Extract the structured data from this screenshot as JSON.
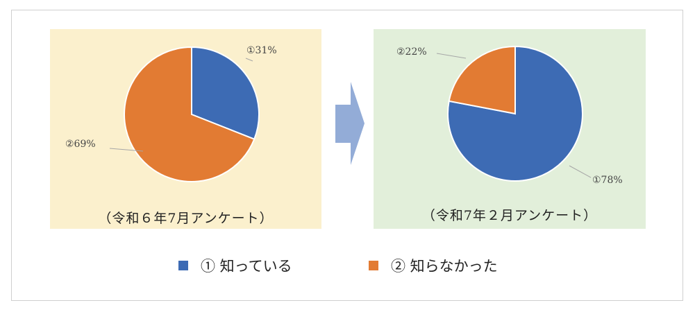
{
  "chart_data": [
    {
      "type": "pie",
      "caption": "（令和６年7月アンケート）",
      "categories": [
        "①",
        "②"
      ],
      "values": [
        31,
        69
      ],
      "slice_labels": [
        "①31%",
        "②69%"
      ],
      "colors": [
        "#3d6bb4",
        "#e27b33"
      ],
      "panel_bg": "#fbf0cd"
    },
    {
      "type": "pie",
      "caption": "（令和7年２月アンケート）",
      "categories": [
        "①",
        "②"
      ],
      "values": [
        78,
        22
      ],
      "slice_labels": [
        "①78%",
        "②22%"
      ],
      "colors": [
        "#3d6bb4",
        "#e27b33"
      ],
      "panel_bg": "#e2efda"
    }
  ],
  "legend": [
    {
      "label": "① 知っている",
      "color": "#3d6bb4"
    },
    {
      "label": "② 知らなかった",
      "color": "#e27b33"
    }
  ],
  "arrow_color": "#93acd7"
}
